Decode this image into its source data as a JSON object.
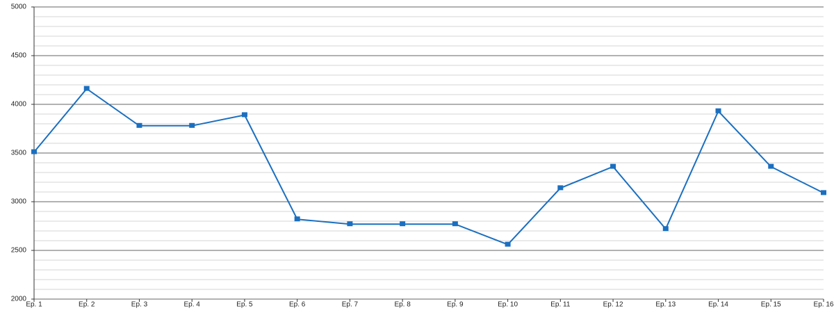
{
  "chart_data": {
    "type": "line",
    "categories": [
      "Ep. 1",
      "Ep. 2",
      "Ep. 3",
      "Ep. 4",
      "Ep. 5",
      "Ep. 6",
      "Ep. 7",
      "Ep. 8",
      "Ep. 9",
      "Ep. 10",
      "Ep. 11",
      "Ep. 12",
      "Ep. 13",
      "Ep. 14",
      "Ep. 15",
      "Ep. 16"
    ],
    "values": [
      3510,
      4160,
      3780,
      3780,
      3890,
      2820,
      2770,
      2770,
      2770,
      2560,
      3140,
      3360,
      2720,
      3930,
      3360,
      3090
    ],
    "color": "#1a6fc0",
    "ylim": [
      2000,
      5000
    ],
    "yticks": [
      2000,
      2500,
      3000,
      3500,
      4000,
      4500,
      5000
    ],
    "grid": true,
    "minor_grid": true
  }
}
